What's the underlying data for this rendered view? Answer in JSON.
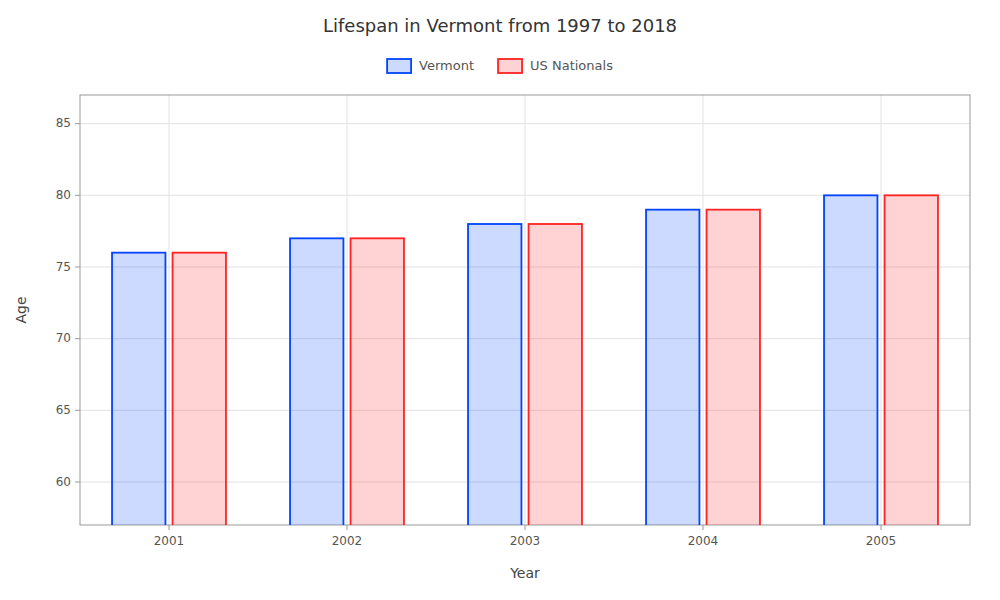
{
  "chart_data": {
    "type": "bar",
    "title": "Lifespan in Vermont from 1997 to 2018",
    "x_label": "Year",
    "y_label": "Age",
    "categories": [
      "2001",
      "2002",
      "2003",
      "2004",
      "2005"
    ],
    "series": [
      {
        "name": "Vermont",
        "color": "#0044ff",
        "values": [
          76,
          77,
          78,
          79,
          80
        ]
      },
      {
        "name": "US Nationals",
        "color": "#ff2222",
        "values": [
          76,
          77,
          78,
          79,
          80
        ]
      }
    ],
    "ylim": [
      57,
      87
    ],
    "yticks": [
      60,
      65,
      70,
      75,
      80,
      85
    ],
    "grid": true,
    "legend": "top"
  }
}
